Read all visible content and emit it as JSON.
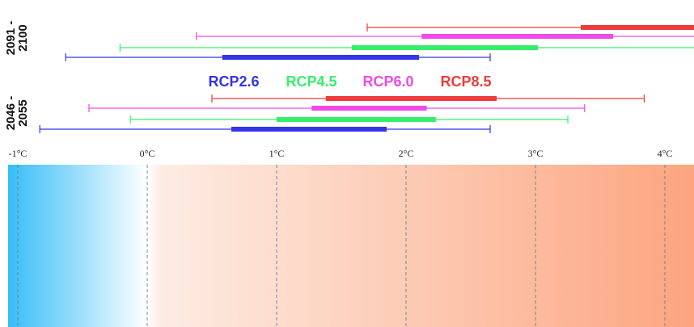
{
  "chart_data": {
    "type": "range-bar",
    "x_unit": "°C",
    "xlim": [
      -1.1,
      4.25
    ],
    "ticks": [
      {
        "value": -1,
        "label": "-1°C"
      },
      {
        "value": 0,
        "label": "0°C"
      },
      {
        "value": 1,
        "label": "1°C"
      },
      {
        "value": 2,
        "label": "2°C"
      },
      {
        "value": 3,
        "label": "3°C"
      },
      {
        "value": 4,
        "label": "4°C"
      }
    ],
    "periods": [
      {
        "label_line1": "2091 -",
        "label_line2": "2100",
        "ranges": [
          {
            "series": "RCP8.5",
            "min": 1.7,
            "likely_min": 3.35,
            "likely_max": 4.25,
            "max": 4.25
          },
          {
            "series": "RCP6.0",
            "min": 0.38,
            "likely_min": 2.12,
            "likely_max": 3.6,
            "max": 4.25
          },
          {
            "series": "RCP4.5",
            "min": -0.21,
            "likely_min": 1.58,
            "likely_max": 3.02,
            "max": 4.25
          },
          {
            "series": "RCP2.6",
            "min": -0.63,
            "likely_min": 0.58,
            "likely_max": 2.1,
            "max": 2.65
          }
        ]
      },
      {
        "label_line1": "2046 -",
        "label_line2": "2055",
        "ranges": [
          {
            "series": "RCP8.5",
            "min": 0.5,
            "likely_min": 1.38,
            "likely_max": 2.7,
            "max": 3.84
          },
          {
            "series": "RCP6.0",
            "min": -0.45,
            "likely_min": 1.27,
            "likely_max": 2.16,
            "max": 3.38
          },
          {
            "series": "RCP4.5",
            "min": -0.13,
            "likely_min": 1.0,
            "likely_max": 2.23,
            "max": 3.25
          },
          {
            "series": "RCP2.6",
            "min": -0.83,
            "likely_min": 0.65,
            "likely_max": 1.85,
            "max": 2.65
          }
        ]
      }
    ],
    "legend": [
      {
        "label": "RCP2.6",
        "color": "#3434e8"
      },
      {
        "label": "RCP4.5",
        "color": "#36ee6a"
      },
      {
        "label": "RCP6.0",
        "color": "#f04ae8"
      },
      {
        "label": "RCP8.5",
        "color": "#ee3b3b"
      }
    ],
    "gradient": {
      "cold_color": "#36bdf7",
      "neutral_color": "#ffffff",
      "warm_light_color": "#fdece3",
      "warm_color": "#fca57f"
    }
  }
}
